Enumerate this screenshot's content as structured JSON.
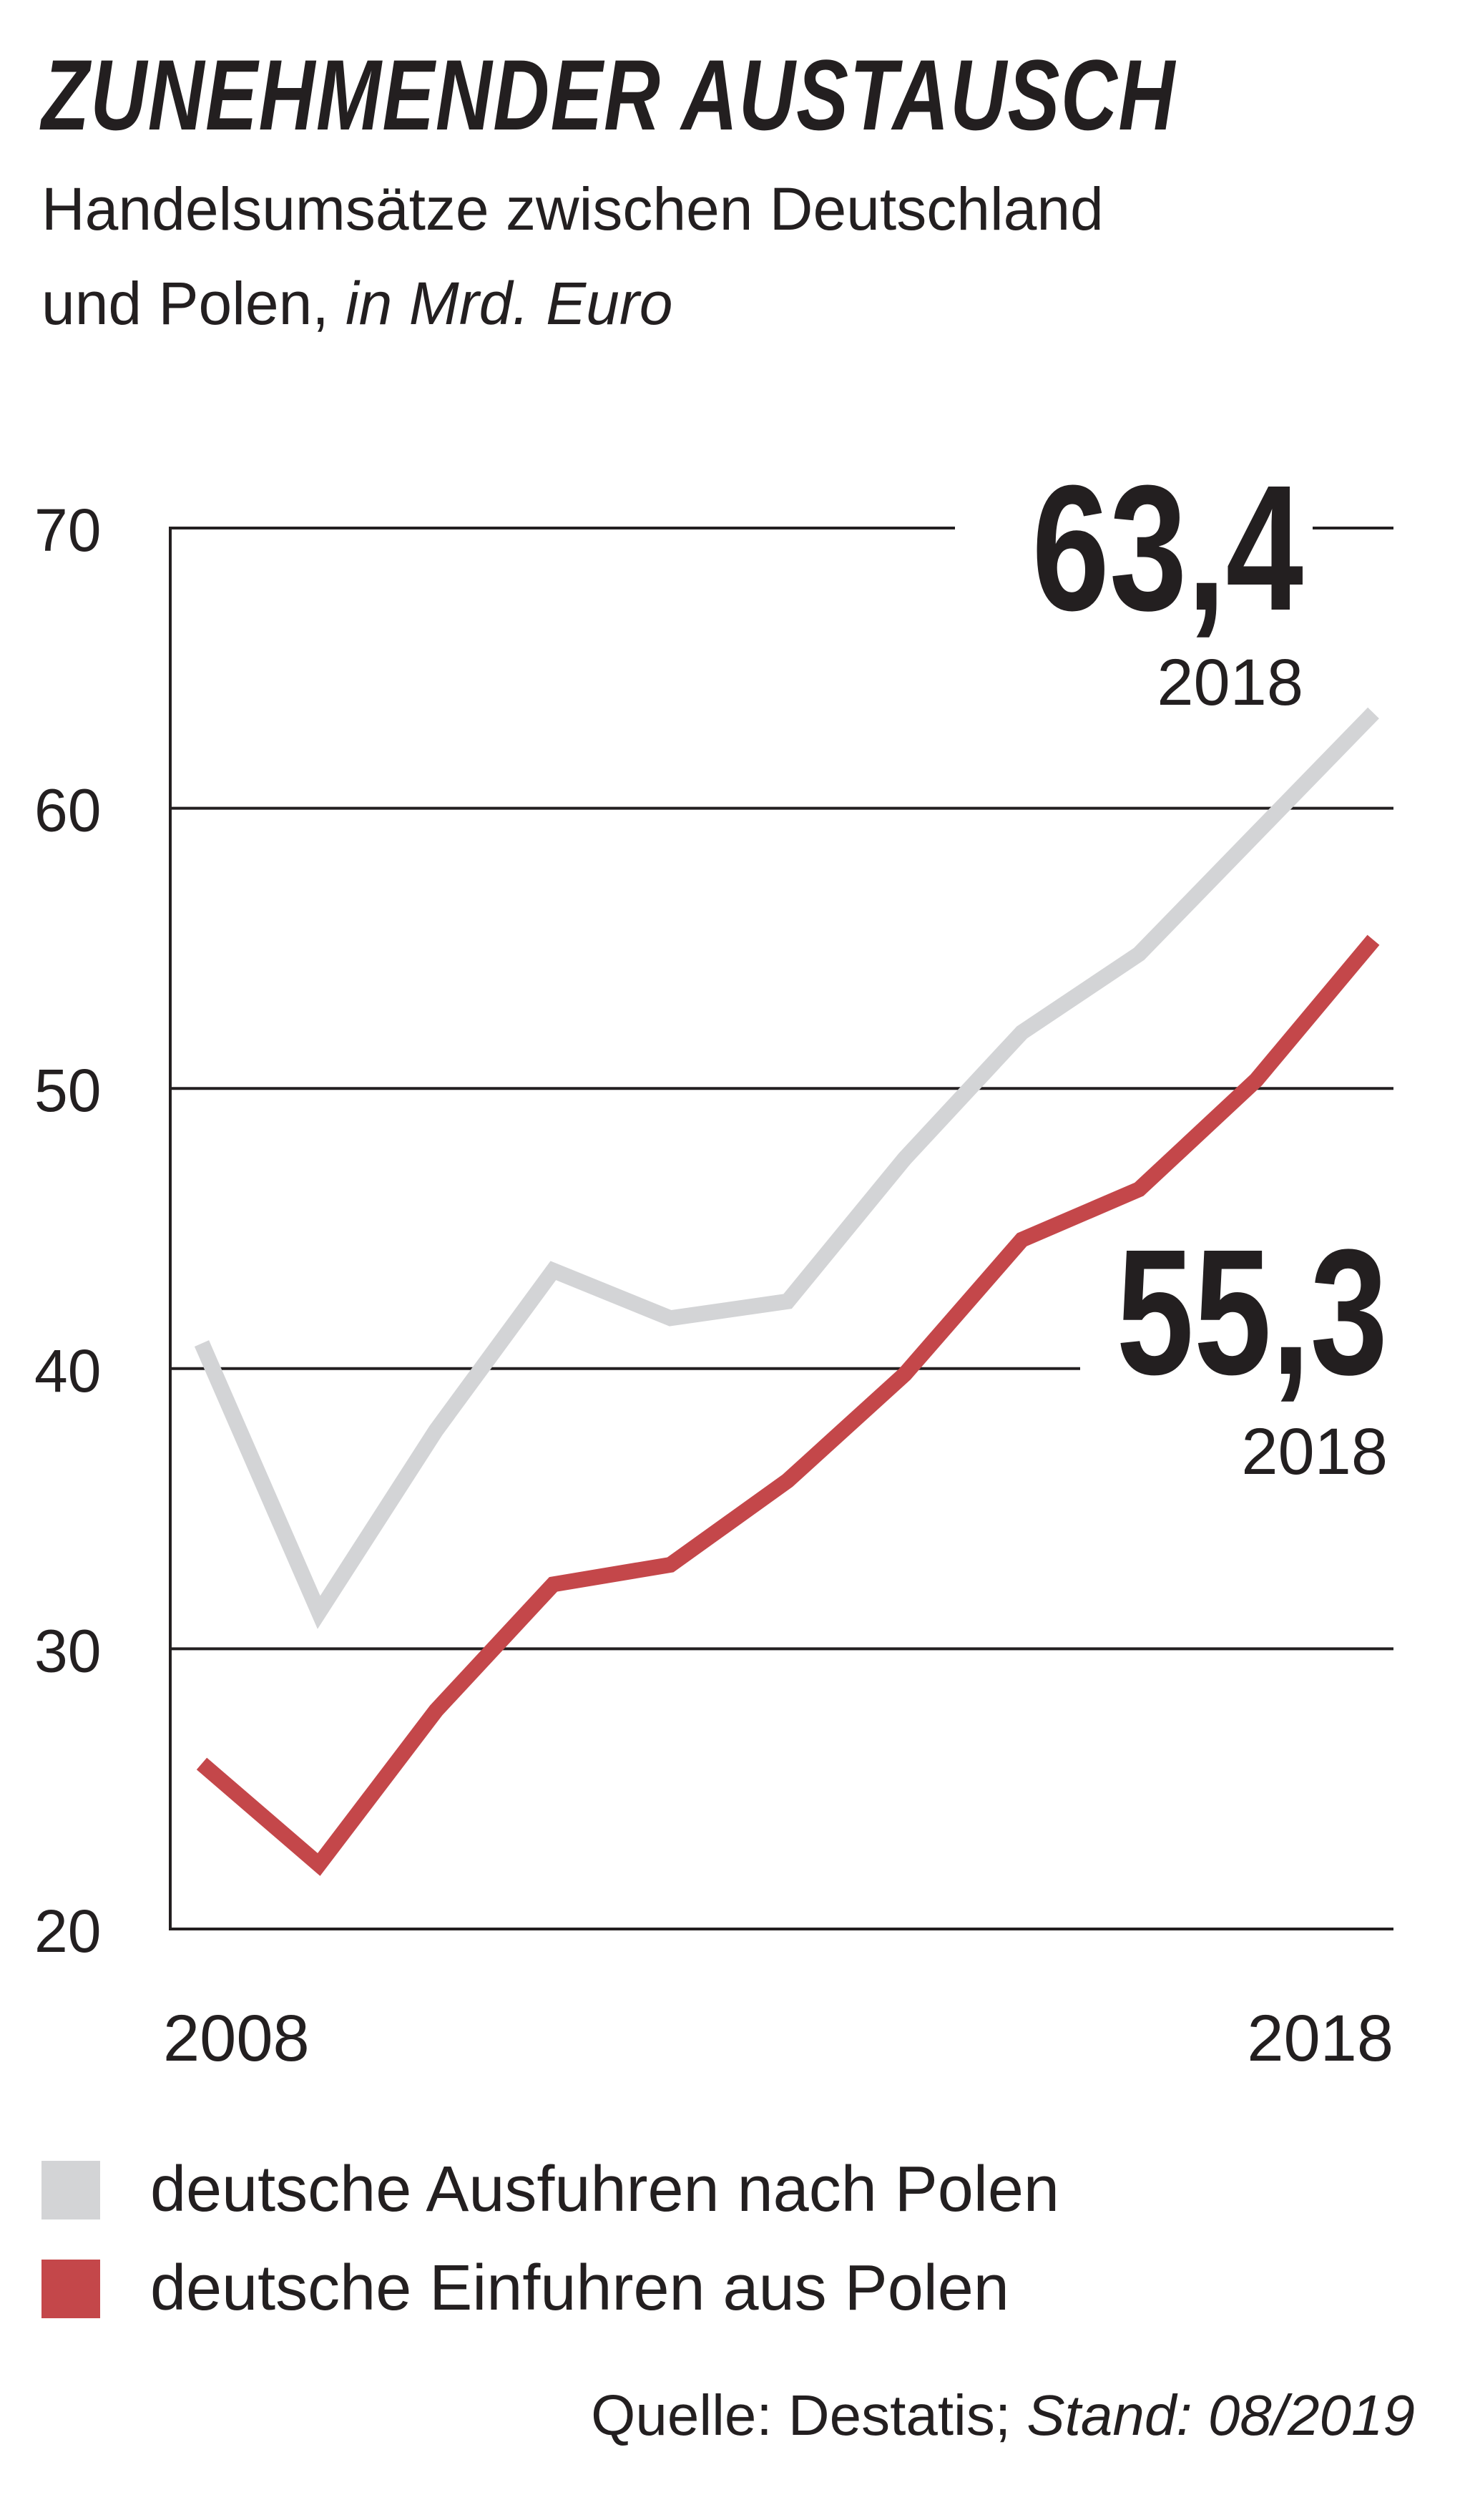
{
  "title": "ZUNEHMENDER AUSTAUSCH",
  "subtitle_line1": "Handelsumsätze zwischen Deutschland",
  "subtitle_line2": "und Polen,",
  "subtitle_unit": "in Mrd. Euro",
  "chart_data": {
    "type": "line",
    "x": [
      2008,
      2009,
      2010,
      2011,
      2012,
      2013,
      2014,
      2015,
      2016,
      2017,
      2018
    ],
    "x_tick_labels": [
      "2008",
      "2018"
    ],
    "ylim": [
      20,
      70
    ],
    "y_ticks": [
      20,
      30,
      40,
      50,
      60,
      70
    ],
    "grid": true,
    "series": [
      {
        "name": "deutsche Ausfuhren nach Polen",
        "color": "#d3d4d6",
        "values": [
          40.9,
          31.3,
          37.8,
          43.5,
          41.8,
          42.4,
          47.5,
          52.0,
          54.8,
          59.1,
          63.4
        ]
      },
      {
        "name": "deutsche Einfuhren aus Polen",
        "color": "#c4474a",
        "values": [
          25.9,
          22.3,
          27.8,
          32.3,
          33.0,
          36.0,
          39.8,
          44.6,
          46.4,
          50.3,
          55.3
        ]
      }
    ],
    "annotations": [
      {
        "value": "63,4",
        "year": "2018",
        "series": 0
      },
      {
        "value": "55,3",
        "year": "2018",
        "series": 1
      }
    ]
  },
  "legend": [
    {
      "label": "deutsche Ausfuhren nach Polen",
      "color": "#d3d4d6"
    },
    {
      "label": "deutsche Einfuhren aus Polen",
      "color": "#c4474a"
    }
  ],
  "source_prefix": "Quelle: Destatis;",
  "source_date": "Stand: 08/2019"
}
